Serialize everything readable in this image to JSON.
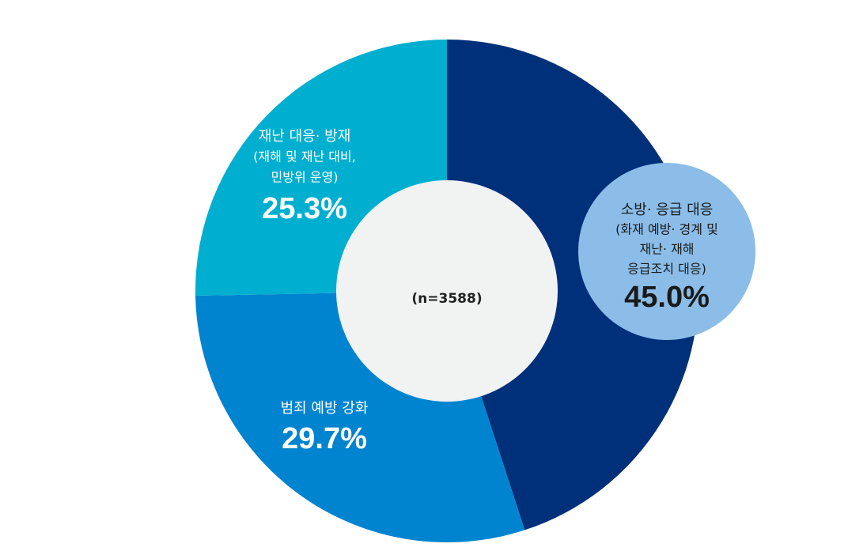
{
  "chart_data": {
    "type": "donut",
    "center_label": "(n=3588)",
    "categories": [
      [
        "소방· 응급 대응",
        "(화재 예방· 경계 및",
        "재난· 재해",
        "응급조치 대응)"
      ],
      [
        "범죄 예방 강화"
      ],
      [
        "재난 대응· 방재",
        "(재해 및 재난 대비,",
        "민방위 운영)"
      ]
    ],
    "values": [
      45.0,
      29.7,
      25.3
    ],
    "value_labels": [
      "45.0%",
      "29.7%",
      "25.3%"
    ],
    "colors": [
      "#00307a",
      "#0084cf",
      "#00afcf"
    ]
  }
}
